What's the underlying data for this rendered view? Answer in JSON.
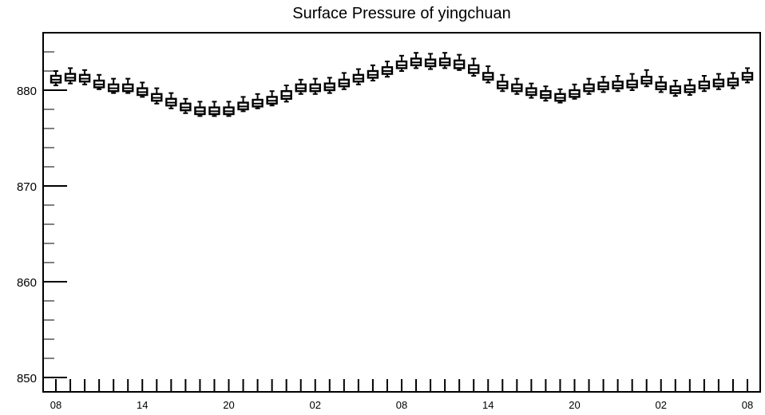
{
  "chart_data": {
    "type": "boxplot",
    "title": "Surface Pressure of yingchuan",
    "xlabel": "",
    "ylabel": "",
    "ylim": [
      848.5,
      886
    ],
    "y_ticks": [
      850,
      860,
      870,
      880
    ],
    "y_tick_labels": [
      "850",
      "860",
      "870",
      "880"
    ],
    "x_tick_labels": [
      "08",
      "14",
      "20",
      "02",
      "08",
      "14",
      "20",
      "02",
      "08"
    ],
    "x_tick_label_index": [
      0,
      6,
      12,
      18,
      24,
      30,
      36,
      42,
      48
    ],
    "grid": false,
    "series": [
      {
        "median": [
          881.1,
          881.3,
          881.2,
          880.6,
          880.2,
          880.2,
          879.8,
          879.2,
          878.7,
          878.2,
          877.8,
          877.8,
          877.8,
          878.3,
          878.6,
          878.9,
          879.4,
          880.2,
          880.2,
          880.3,
          880.7,
          881.2,
          881.6,
          882.0,
          882.6,
          882.9,
          882.8,
          882.9,
          882.7,
          882.2,
          881.4,
          880.5,
          880.2,
          879.8,
          879.5,
          879.2,
          879.6,
          880.2,
          880.4,
          880.5,
          880.6,
          881.0,
          880.4,
          880.0,
          880.1,
          880.5,
          880.7,
          880.8,
          881.4
        ],
        "q1": [
          880.8,
          881.0,
          880.9,
          880.3,
          879.9,
          879.9,
          879.5,
          878.9,
          878.4,
          877.9,
          877.5,
          877.5,
          877.5,
          878.0,
          878.3,
          878.6,
          879.1,
          879.9,
          879.9,
          880.0,
          880.4,
          880.9,
          881.3,
          881.7,
          882.3,
          882.6,
          882.5,
          882.6,
          882.3,
          881.8,
          881.1,
          880.2,
          879.9,
          879.5,
          879.2,
          878.9,
          879.3,
          879.9,
          880.1,
          880.2,
          880.3,
          880.7,
          880.1,
          879.7,
          879.8,
          880.2,
          880.4,
          880.5,
          881.1
        ],
        "q3": [
          881.5,
          881.7,
          881.6,
          881.0,
          880.6,
          880.6,
          880.2,
          879.6,
          879.1,
          878.6,
          878.2,
          878.2,
          878.2,
          878.7,
          879.0,
          879.3,
          879.9,
          880.6,
          880.6,
          880.7,
          881.1,
          881.6,
          882.0,
          882.4,
          883.0,
          883.3,
          883.2,
          883.3,
          883.1,
          882.6,
          881.8,
          880.9,
          880.6,
          880.2,
          879.9,
          879.6,
          880.0,
          880.6,
          880.8,
          880.9,
          881.0,
          881.4,
          880.8,
          880.4,
          880.5,
          880.9,
          881.1,
          881.2,
          881.8
        ],
        "min": [
          880.5,
          880.7,
          880.6,
          880.1,
          879.7,
          879.7,
          879.3,
          878.6,
          878.1,
          877.6,
          877.3,
          877.3,
          877.3,
          877.8,
          878.1,
          878.4,
          878.8,
          879.6,
          879.6,
          879.7,
          880.1,
          880.6,
          881.0,
          881.4,
          882.0,
          882.3,
          882.2,
          882.3,
          882.1,
          881.5,
          880.8,
          879.9,
          879.6,
          879.2,
          878.9,
          878.7,
          879.1,
          879.6,
          879.8,
          879.9,
          880.0,
          880.4,
          879.8,
          879.4,
          879.5,
          879.9,
          880.1,
          880.2,
          880.8
        ],
        "max": [
          882.0,
          882.3,
          882.1,
          881.6,
          881.2,
          881.2,
          880.8,
          880.2,
          879.7,
          879.1,
          878.8,
          878.8,
          878.8,
          879.3,
          879.6,
          879.9,
          880.5,
          881.1,
          881.2,
          881.3,
          881.8,
          882.2,
          882.6,
          883.0,
          883.6,
          883.9,
          883.8,
          883.9,
          883.7,
          883.3,
          882.5,
          881.6,
          881.2,
          880.7,
          880.4,
          880.1,
          880.6,
          881.2,
          881.4,
          881.5,
          881.7,
          882.1,
          881.4,
          881.0,
          881.1,
          881.5,
          881.7,
          881.8,
          882.3
        ]
      }
    ]
  }
}
